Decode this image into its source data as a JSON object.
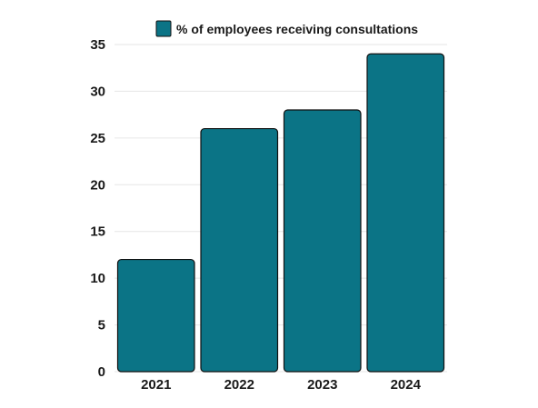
{
  "chart_data": {
    "type": "bar",
    "categories": [
      "2021",
      "2022",
      "2023",
      "2024"
    ],
    "series": [
      {
        "name": "% of employees receiving consultations",
        "values": [
          12,
          26,
          28,
          34
        ]
      }
    ],
    "title": "",
    "xlabel": "",
    "ylabel": "",
    "ylim": [
      0,
      35
    ],
    "yticks": [
      0,
      5,
      10,
      15,
      20,
      25,
      30,
      35
    ],
    "grid": true,
    "legend_position": "top-center",
    "colors": {
      "bar": "#0b7486",
      "bar_stroke": "#111111",
      "grid": "#e6e6e6"
    }
  }
}
